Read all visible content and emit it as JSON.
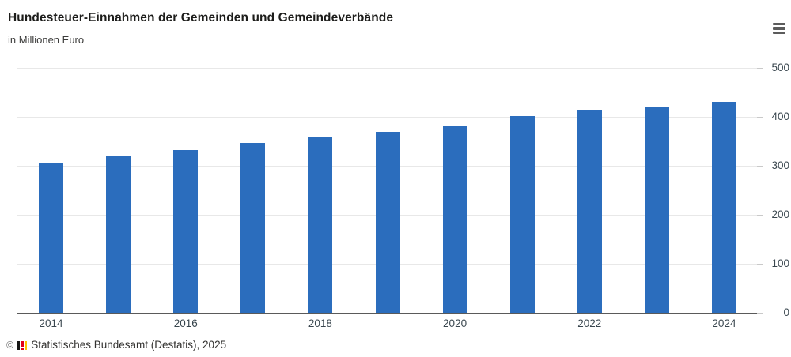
{
  "header": {
    "title": "Hundesteuer-Einnahmen der Gemeinden und Gemeindeverbände",
    "subtitle": "in Millionen Euro",
    "menu_icon": "hamburger-menu"
  },
  "chart_data": {
    "type": "bar",
    "title": "Hundesteuer-Einnahmen der Gemeinden und Gemeindeverbände",
    "subtitle": "in Millionen Euro",
    "ylabel": "in Millionen Euro",
    "xlabel": "",
    "categories": [
      "2014",
      "2015",
      "2016",
      "2017",
      "2018",
      "2019",
      "2020",
      "2021",
      "2022",
      "2023",
      "2024"
    ],
    "values": [
      307,
      319,
      333,
      346,
      358,
      369,
      380,
      401,
      414,
      421,
      430
    ],
    "x_axis_labeled_categories": [
      "2014",
      "2016",
      "2018",
      "2020",
      "2022",
      "2024"
    ],
    "y_ticks": [
      0,
      100,
      200,
      300,
      400,
      500
    ],
    "ylim": [
      0,
      500
    ],
    "y_axis_side": "right",
    "grid": true,
    "legend": "none",
    "bar_color": "#2b6dbd",
    "gridline_color": "#e8e8e8",
    "axis_line_color": "#5a5a5a",
    "tick_label_color": "#39464e"
  },
  "footer": {
    "copyright": "©",
    "source": "Statistisches Bundesamt (Destatis), 2025",
    "logo_colors": {
      "black": "#161615",
      "red": "#e2001a",
      "gold": "#ffc300"
    }
  }
}
